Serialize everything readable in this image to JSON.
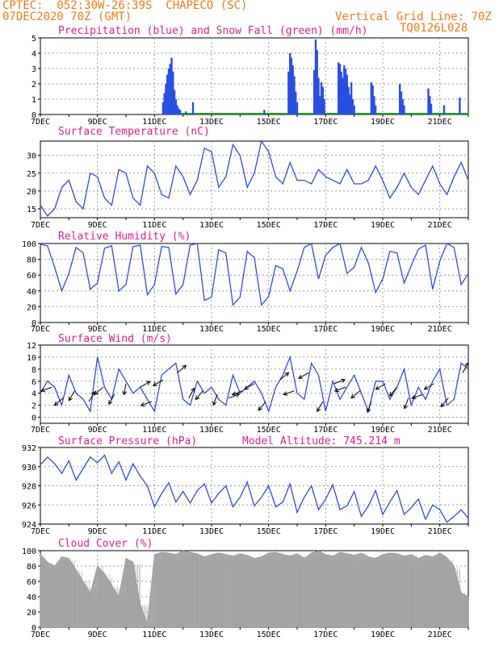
{
  "header": {
    "line1": "CPTEC:  052:30W-26:39S  CHAPECO (SC)",
    "line2": "07DEC2020 70Z (GMT)",
    "vgrid": "Vertical Grid Line: 70Z",
    "code": "TQ0126L028"
  },
  "colors": {
    "header": "#f07a1a",
    "title": "#e0208a",
    "line": "#2a4fe0",
    "snow": "#19a019",
    "cloud": "#a8a8a8",
    "grid": "#999999"
  },
  "x_ticks": [
    "7DEC",
    "9DEC",
    "11DEC",
    "13DEC",
    "15DEC",
    "17DEC",
    "19DEC",
    "21DEC"
  ],
  "x_day_start": 7,
  "x_day_end": 22,
  "chart_data": [
    {
      "id": "precip",
      "type": "bar",
      "title": "Precipitation (blue) and Snow Fall (green) (mm/h)",
      "ylim": [
        0,
        5
      ],
      "yticks": [
        0,
        1,
        2,
        3,
        4,
        5
      ],
      "series": [
        {
          "name": "Precipitation",
          "x": [
            11.3,
            11.35,
            11.4,
            11.45,
            11.5,
            11.55,
            11.6,
            11.65,
            11.7,
            11.75,
            11.8,
            11.85,
            11.9,
            12.1,
            12.35,
            14.85,
            15.7,
            15.75,
            15.8,
            15.85,
            15.9,
            15.95,
            16.0,
            16.6,
            16.65,
            16.7,
            16.75,
            16.8,
            16.85,
            16.9,
            16.95,
            17.45,
            17.5,
            17.55,
            17.6,
            17.65,
            17.7,
            17.75,
            17.8,
            17.85,
            17.9,
            17.95,
            18.0,
            18.6,
            18.65,
            18.7,
            18.75,
            19.6,
            19.65,
            19.7,
            19.75,
            20.6,
            20.65,
            20.7,
            21.15,
            21.7
          ],
          "values": [
            0.8,
            1.4,
            2.0,
            2.6,
            3.0,
            3.3,
            3.7,
            2.8,
            1.6,
            1.0,
            0.6,
            0.4,
            0.3,
            0.2,
            0.8,
            0.3,
            2.8,
            4.0,
            3.7,
            3.2,
            2.5,
            1.5,
            0.8,
            2.9,
            4.9,
            4.2,
            2.4,
            1.2,
            2.1,
            1.8,
            1.0,
            3.4,
            3.3,
            2.8,
            2.4,
            3.2,
            3.0,
            2.6,
            1.8,
            1.3,
            2.1,
            1.0,
            0.6,
            2.1,
            1.9,
            1.2,
            0.6,
            2.0,
            1.5,
            1.0,
            0.6,
            1.7,
            1.2,
            0.7,
            0.6,
            1.1
          ]
        },
        {
          "name": "Snow Fall",
          "x": [],
          "values": []
        }
      ]
    },
    {
      "id": "temp",
      "type": "line",
      "title": "Surface Temperature (nC)",
      "ylim": [
        12.5,
        34
      ],
      "yticks": [
        15,
        20,
        25,
        30
      ],
      "x": [
        7.0,
        7.25,
        7.5,
        7.75,
        8.0,
        8.25,
        8.5,
        8.75,
        9.0,
        9.25,
        9.5,
        9.75,
        10.0,
        10.25,
        10.5,
        10.75,
        11.0,
        11.25,
        11.5,
        11.75,
        12.0,
        12.25,
        12.5,
        12.75,
        13.0,
        13.25,
        13.5,
        13.75,
        14.0,
        14.25,
        14.5,
        14.75,
        15.0,
        15.25,
        15.5,
        15.75,
        16.0,
        16.25,
        16.5,
        16.75,
        17.0,
        17.25,
        17.5,
        17.75,
        18.0,
        18.25,
        18.5,
        18.75,
        19.0,
        19.25,
        19.5,
        19.75,
        20.0,
        20.25,
        20.5,
        20.75,
        21.0,
        21.25,
        21.5,
        21.75,
        22.0
      ],
      "values": [
        16,
        13,
        15,
        21,
        23,
        17,
        15,
        25,
        24,
        18,
        16,
        26,
        25,
        18,
        16,
        27,
        25,
        19,
        18,
        27,
        24,
        19,
        23,
        32,
        31,
        21,
        24,
        33,
        30,
        21,
        25,
        34,
        31,
        24,
        22,
        28,
        23,
        23,
        22,
        26,
        24,
        23,
        22,
        26,
        22,
        22,
        23,
        27,
        23,
        18,
        21,
        25,
        21,
        19,
        23,
        27,
        22,
        19,
        24,
        28,
        23
      ]
    },
    {
      "id": "rh",
      "type": "line",
      "title": "Relative Humidity (%)",
      "ylim": [
        0,
        100
      ],
      "yticks": [
        0,
        20,
        40,
        60,
        80,
        100
      ],
      "x": [
        7.0,
        7.25,
        7.5,
        7.75,
        8.0,
        8.25,
        8.5,
        8.75,
        9.0,
        9.25,
        9.5,
        9.75,
        10.0,
        10.25,
        10.5,
        10.75,
        11.0,
        11.25,
        11.5,
        11.75,
        12.0,
        12.25,
        12.5,
        12.75,
        13.0,
        13.25,
        13.5,
        13.75,
        14.0,
        14.25,
        14.5,
        14.75,
        15.0,
        15.25,
        15.5,
        15.75,
        16.0,
        16.25,
        16.5,
        16.75,
        17.0,
        17.25,
        17.5,
        17.75,
        18.0,
        18.25,
        18.5,
        18.75,
        19.0,
        19.25,
        19.5,
        19.75,
        20.0,
        20.25,
        20.5,
        20.75,
        21.0,
        21.25,
        21.5,
        21.75,
        22.0
      ],
      "values": [
        99,
        97,
        70,
        40,
        62,
        95,
        88,
        42,
        50,
        94,
        97,
        40,
        48,
        96,
        98,
        35,
        48,
        96,
        95,
        36,
        48,
        98,
        100,
        28,
        32,
        92,
        88,
        22,
        32,
        90,
        82,
        22,
        33,
        72,
        68,
        40,
        65,
        95,
        100,
        55,
        85,
        95,
        100,
        62,
        70,
        95,
        75,
        38,
        55,
        90,
        88,
        50,
        72,
        93,
        98,
        42,
        78,
        100,
        95,
        48,
        62
      ]
    },
    {
      "id": "wind",
      "type": "line",
      "title": "Surface Wind (m/s)",
      "ylim": [
        -1,
        12
      ],
      "yticks": [
        0,
        2,
        4,
        6,
        8,
        10,
        12
      ],
      "x": [
        7.0,
        7.25,
        7.5,
        7.75,
        8.0,
        8.25,
        8.5,
        8.75,
        9.0,
        9.25,
        9.5,
        9.75,
        10.0,
        10.25,
        10.5,
        10.75,
        11.0,
        11.25,
        11.5,
        11.75,
        12.0,
        12.25,
        12.5,
        12.75,
        13.0,
        13.25,
        13.5,
        13.75,
        14.0,
        14.25,
        14.5,
        14.75,
        15.0,
        15.25,
        15.5,
        15.75,
        16.0,
        16.25,
        16.5,
        16.75,
        17.0,
        17.25,
        17.5,
        17.75,
        18.0,
        18.25,
        18.5,
        18.75,
        19.0,
        19.25,
        19.5,
        19.75,
        20.0,
        20.25,
        20.5,
        20.75,
        21.0,
        21.25,
        21.5,
        21.75,
        22.0
      ],
      "values": [
        4,
        6,
        5,
        2,
        7,
        4,
        3,
        1,
        10,
        5,
        3,
        8,
        6,
        4,
        5,
        3,
        1,
        7,
        8,
        9,
        3,
        2,
        6,
        4,
        5,
        3,
        2,
        7,
        4,
        5,
        6,
        4,
        1,
        5,
        7,
        10,
        4,
        3,
        9,
        7,
        1,
        6,
        3,
        5,
        7,
        4,
        1,
        6,
        6,
        3,
        5,
        8,
        2,
        5,
        3,
        6,
        8,
        2,
        3,
        9,
        8
      ],
      "arrows_day": [
        7.4,
        7.8,
        8.2,
        8.7,
        9.2,
        9.6,
        10.0,
        10.5,
        10.9,
        11.3,
        11.8,
        12.2,
        12.7,
        13.2,
        13.6,
        14.1,
        14.5,
        14.9,
        15.4,
        15.9,
        16.4,
        16.9,
        17.3,
        17.7,
        18.2,
        18.6,
        19.1,
        19.5,
        19.9,
        20.4,
        20.8,
        21.3,
        21.8
      ],
      "arrows_dir": [
        200,
        220,
        240,
        60,
        220,
        240,
        260,
        30,
        200,
        210,
        40,
        60,
        230,
        250,
        20,
        200,
        210,
        230,
        40,
        200,
        210,
        240,
        20,
        200,
        220,
        250,
        210,
        230,
        250,
        200,
        210,
        230,
        60
      ]
    },
    {
      "id": "pressure",
      "type": "line",
      "title": "Surface Pressure (hPa)",
      "annotation": "Model Altitude: 745.214 m",
      "ylim": [
        924,
        932
      ],
      "yticks": [
        924,
        926,
        928,
        930,
        932
      ],
      "x": [
        7.0,
        7.25,
        7.5,
        7.75,
        8.0,
        8.25,
        8.5,
        8.75,
        9.0,
        9.25,
        9.5,
        9.75,
        10.0,
        10.25,
        10.5,
        10.75,
        11.0,
        11.25,
        11.5,
        11.75,
        12.0,
        12.25,
        12.5,
        12.75,
        13.0,
        13.25,
        13.5,
        13.75,
        14.0,
        14.25,
        14.5,
        14.75,
        15.0,
        15.25,
        15.5,
        15.75,
        16.0,
        16.25,
        16.5,
        16.75,
        17.0,
        17.25,
        17.5,
        17.75,
        18.0,
        18.25,
        18.5,
        18.75,
        19.0,
        19.25,
        19.5,
        19.75,
        20.0,
        20.25,
        20.5,
        20.75,
        21.0,
        21.25,
        21.5,
        21.75,
        22.0
      ],
      "values": [
        930.2,
        931.0,
        930.3,
        929.3,
        930.6,
        928.6,
        929.8,
        931.0,
        930.4,
        931.2,
        929.3,
        930.5,
        928.6,
        930.3,
        929.0,
        928.0,
        925.8,
        927.2,
        928.3,
        926.3,
        927.4,
        926.2,
        927.5,
        928.2,
        926.2,
        927.2,
        928.0,
        925.8,
        926.8,
        928.4,
        925.9,
        926.8,
        928.0,
        925.8,
        926.3,
        928.2,
        925.2,
        926.8,
        928.0,
        925.5,
        926.6,
        928.1,
        925.5,
        925.9,
        927.4,
        924.8,
        925.9,
        927.5,
        925.0,
        926.3,
        927.5,
        925.0,
        925.7,
        926.6,
        924.5,
        926.0,
        925.5,
        924.2,
        924.8,
        925.5,
        924.6
      ]
    },
    {
      "id": "cloud",
      "type": "area",
      "title": "Cloud Cover (%)",
      "ylim": [
        0,
        100
      ],
      "yticks": [
        0,
        20,
        40,
        60,
        80,
        100
      ],
      "x": [
        7.0,
        7.25,
        7.5,
        7.75,
        8.0,
        8.25,
        8.5,
        8.75,
        9.0,
        9.25,
        9.5,
        9.75,
        10.0,
        10.25,
        10.5,
        10.75,
        11.0,
        11.25,
        11.5,
        11.75,
        12.0,
        12.25,
        12.5,
        12.75,
        13.0,
        13.25,
        13.5,
        13.75,
        14.0,
        14.25,
        14.5,
        14.75,
        15.0,
        15.25,
        15.5,
        15.75,
        16.0,
        16.25,
        16.5,
        16.75,
        17.0,
        17.25,
        17.5,
        17.75,
        18.0,
        18.25,
        18.5,
        18.75,
        19.0,
        19.25,
        19.5,
        19.75,
        20.0,
        20.25,
        20.5,
        20.75,
        21.0,
        21.25,
        21.5,
        21.75,
        22.0
      ],
      "values": [
        95,
        85,
        80,
        92,
        90,
        75,
        60,
        45,
        80,
        70,
        55,
        40,
        90,
        85,
        30,
        5,
        95,
        98,
        97,
        95,
        100,
        98,
        96,
        92,
        95,
        97,
        95,
        93,
        96,
        94,
        90,
        92,
        97,
        98,
        95,
        93,
        96,
        90,
        97,
        100,
        95,
        93,
        98,
        96,
        94,
        97,
        92,
        90,
        95,
        97,
        96,
        93,
        95,
        90,
        94,
        92,
        97,
        91,
        80,
        45,
        40
      ]
    }
  ]
}
